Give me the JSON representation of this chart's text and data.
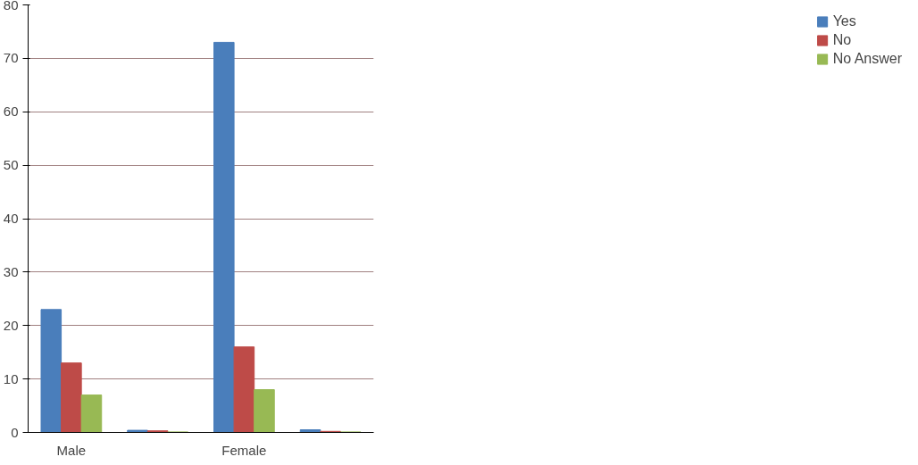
{
  "chart_data": {
    "type": "bar",
    "categories": [
      "Male",
      null,
      "Female",
      null
    ],
    "series": [
      {
        "name": "Yes",
        "color": "#4a7ebb",
        "values": [
          23,
          0.4,
          73,
          0.5
        ]
      },
      {
        "name": "No",
        "color": "#be4b48",
        "values": [
          13,
          0.3,
          16,
          0.2
        ]
      },
      {
        "name": "No Answer",
        "color": "#98b954",
        "values": [
          7,
          0.1,
          8,
          0.1
        ]
      }
    ],
    "ylim": [
      0,
      80
    ],
    "yticks": [
      0,
      10,
      20,
      30,
      40,
      50,
      60,
      70,
      80
    ],
    "grid": "y",
    "legend": "right"
  }
}
